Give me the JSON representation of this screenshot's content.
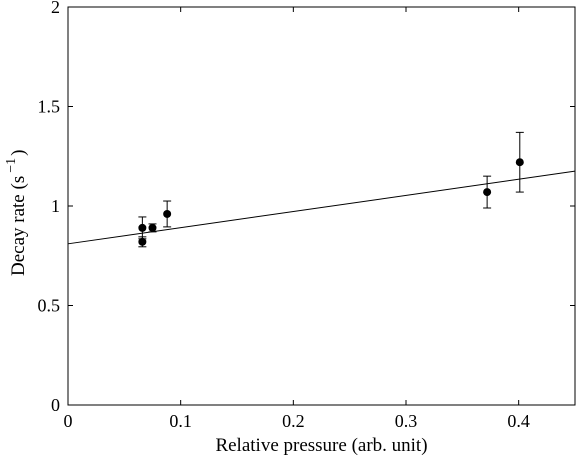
{
  "chart_data": {
    "type": "scatter",
    "xlabel": "Relative pressure (arb. unit)",
    "ylabel": "Decay rate (s",
    "ylabel_superscript": "−1",
    "ylabel_close": ")",
    "xlim": [
      0,
      0.45
    ],
    "ylim": [
      0,
      2
    ],
    "x_ticks": [
      0,
      0.1,
      0.2,
      0.3,
      0.4
    ],
    "x_tick_labels": [
      "0",
      "0.1",
      "0.2",
      "0.3",
      "0.4"
    ],
    "y_ticks": [
      0,
      0.5,
      1,
      1.5,
      2
    ],
    "y_tick_labels": [
      "0",
      "0.5",
      "1",
      "1.5",
      "2"
    ],
    "grid": false,
    "points": [
      {
        "x": 0.066,
        "y": 0.89,
        "err": 0.055
      },
      {
        "x": 0.066,
        "y": 0.82,
        "err": 0.025
      },
      {
        "x": 0.075,
        "y": 0.89,
        "err": 0.02
      },
      {
        "x": 0.088,
        "y": 0.96,
        "err": 0.065
      },
      {
        "x": 0.372,
        "y": 1.07,
        "err": 0.08
      },
      {
        "x": 0.401,
        "y": 1.22,
        "err": 0.15
      }
    ],
    "fit_line": {
      "x": [
        0,
        0.45
      ],
      "y": [
        0.81,
        1.175
      ]
    },
    "colors": {
      "axes": "#000000",
      "markers": "#000000",
      "line": "#000000"
    }
  }
}
